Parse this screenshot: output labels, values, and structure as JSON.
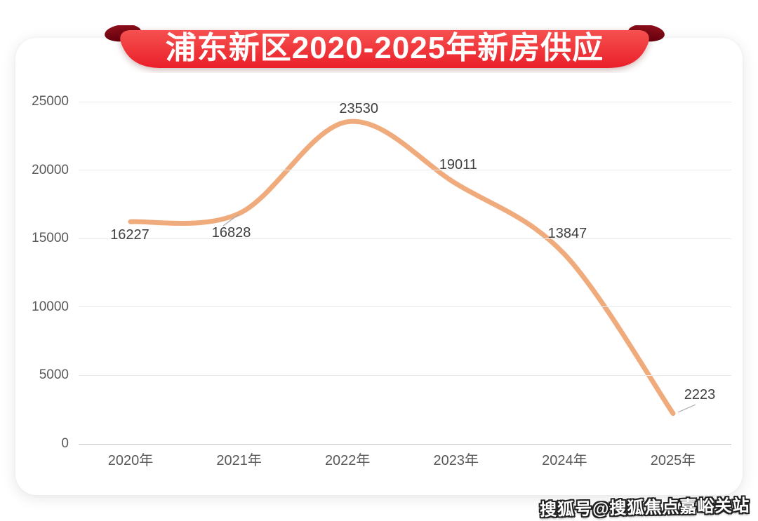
{
  "banner": {
    "title": "浦东新区2020-2025年新房供应",
    "ribbon_red_top": "#F5504F",
    "ribbon_red_bottom": "#EA1F29",
    "ribbon_fold_color": "#7B0A14"
  },
  "watermark": {
    "text": "搜狐号@搜狐焦点嘉峪关站"
  },
  "chart_data": {
    "type": "line",
    "title": "浦东新区2020-2025年新房供应",
    "categories": [
      "2020年",
      "2021年",
      "2022年",
      "2023年",
      "2024年",
      "2025年"
    ],
    "values": [
      16227,
      16828,
      23530,
      19011,
      13847,
      2223
    ],
    "yticks": [
      0,
      5000,
      10000,
      15000,
      20000,
      25000
    ],
    "ylim": [
      0,
      25000
    ],
    "grid": true,
    "legend": false,
    "smooth": true,
    "line_color": "#F0AB7D",
    "label_color": "#3F3F3F",
    "axis_text_color": "#595959",
    "gridline_color": "#EAEAEA",
    "baseline_color": "#C3C3C3",
    "leader_line_color": "#A8A8A8"
  }
}
